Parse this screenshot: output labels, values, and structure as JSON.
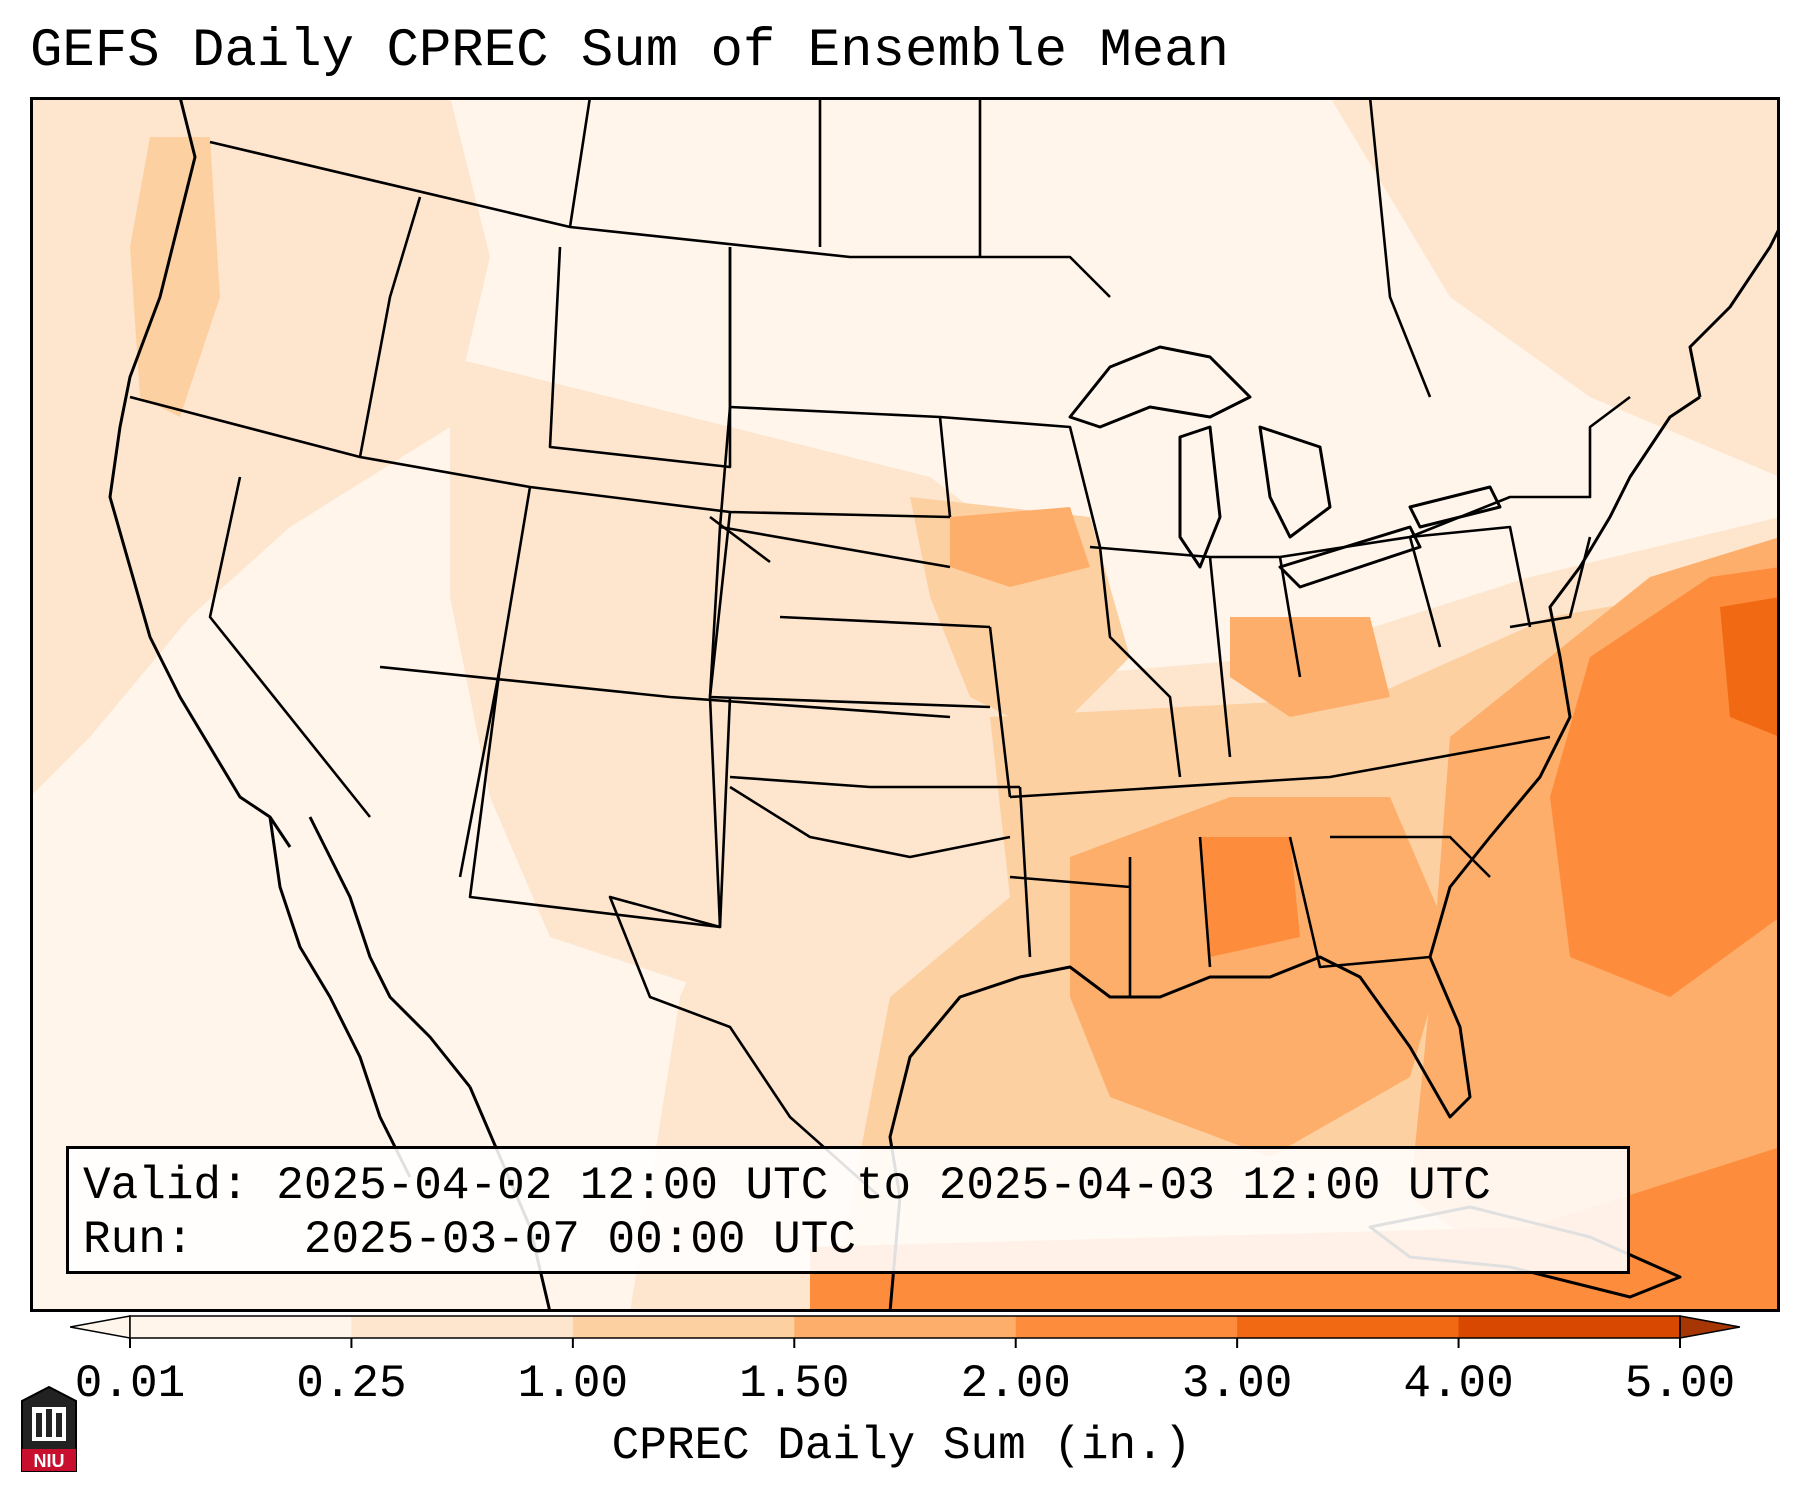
{
  "header": {
    "title": "GEFS Daily CPREC Sum of Ensemble Mean"
  },
  "info": {
    "valid_label": "Valid:",
    "valid_value": "2025-04-02 12:00 UTC to 2025-04-03 12:00 UTC",
    "run_label": "Run:",
    "run_value": "2025-03-07 00:00 UTC"
  },
  "colorbar": {
    "label": "CPREC Daily Sum (in.)",
    "ticks": [
      "0.01",
      "0.25",
      "1.00",
      "1.50",
      "2.00",
      "3.00",
      "4.00",
      "5.00"
    ],
    "colors": [
      "#fff5eb",
      "#fee6ce",
      "#fdd0a2",
      "#fdae6b",
      "#fd8d3c",
      "#f16913",
      "#d94801",
      "#a63603"
    ]
  },
  "logo": {
    "text": "NIU",
    "colors": {
      "red": "#c8102e",
      "dark": "#222222"
    }
  }
}
